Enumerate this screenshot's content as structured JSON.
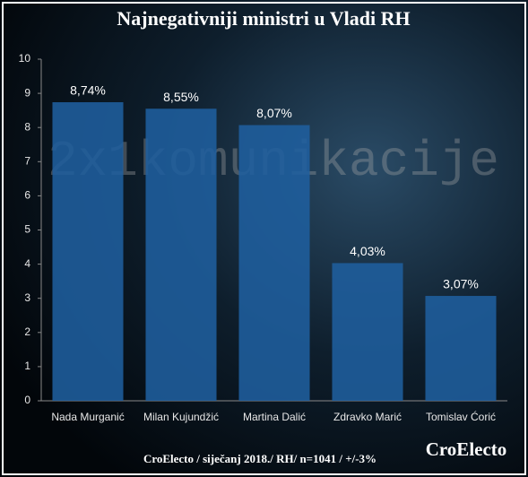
{
  "chart_data": {
    "type": "bar",
    "title": "Najnegativniji ministri u Vladi RH",
    "categories": [
      "Nada Murganić",
      "Milan Kujundžić",
      "Martina Dalić",
      "Zdravko Marić",
      "Tomislav Ćorić"
    ],
    "values": [
      8.74,
      8.55,
      8.07,
      4.03,
      3.07
    ],
    "value_labels": [
      "8,74%",
      "8,55%",
      "8,07%",
      "4,03%",
      "3,07%"
    ],
    "color": "#1f5f9e",
    "ylim": [
      0,
      10
    ],
    "yticks": [
      0,
      1,
      2,
      3,
      4,
      5,
      6,
      7,
      8,
      9,
      10
    ],
    "watermark": "2x1komunikacije",
    "footer": "CroElecto / siječanj  2018./ RH/ n=1041 / +/-3%",
    "brand": "CroElecto"
  }
}
